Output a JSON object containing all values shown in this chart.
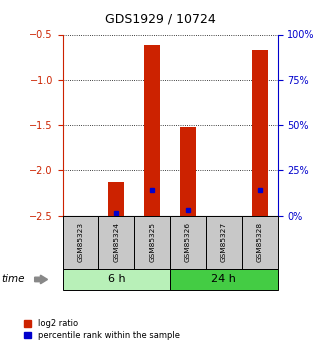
{
  "title": "GDS1929 / 10724",
  "samples": [
    "GSM85323",
    "GSM85324",
    "GSM85325",
    "GSM85326",
    "GSM85327",
    "GSM85328"
  ],
  "log2_ratio": [
    0.0,
    -2.13,
    -0.62,
    -1.52,
    0.0,
    -0.67
  ],
  "percentile_rank": [
    0.0,
    1.5,
    14.0,
    3.0,
    0.0,
    14.0
  ],
  "groups": [
    {
      "label": "6 h",
      "indices": [
        0,
        1,
        2
      ],
      "color": "#b8f0b8"
    },
    {
      "label": "24 h",
      "indices": [
        3,
        4,
        5
      ],
      "color": "#44cc44"
    }
  ],
  "ylim_left": [
    -2.5,
    -0.5
  ],
  "ylim_right": [
    0,
    100
  ],
  "yticks_left": [
    -2.5,
    -2.0,
    -1.5,
    -1.0,
    -0.5
  ],
  "yticks_right": [
    0,
    25,
    50,
    75,
    100
  ],
  "bar_color": "#cc2200",
  "percentile_color": "#0000cc",
  "sample_box_color": "#c8c8c8",
  "left_axis_color": "#cc2200",
  "right_axis_color": "#0000cc",
  "bar_width": 0.45
}
